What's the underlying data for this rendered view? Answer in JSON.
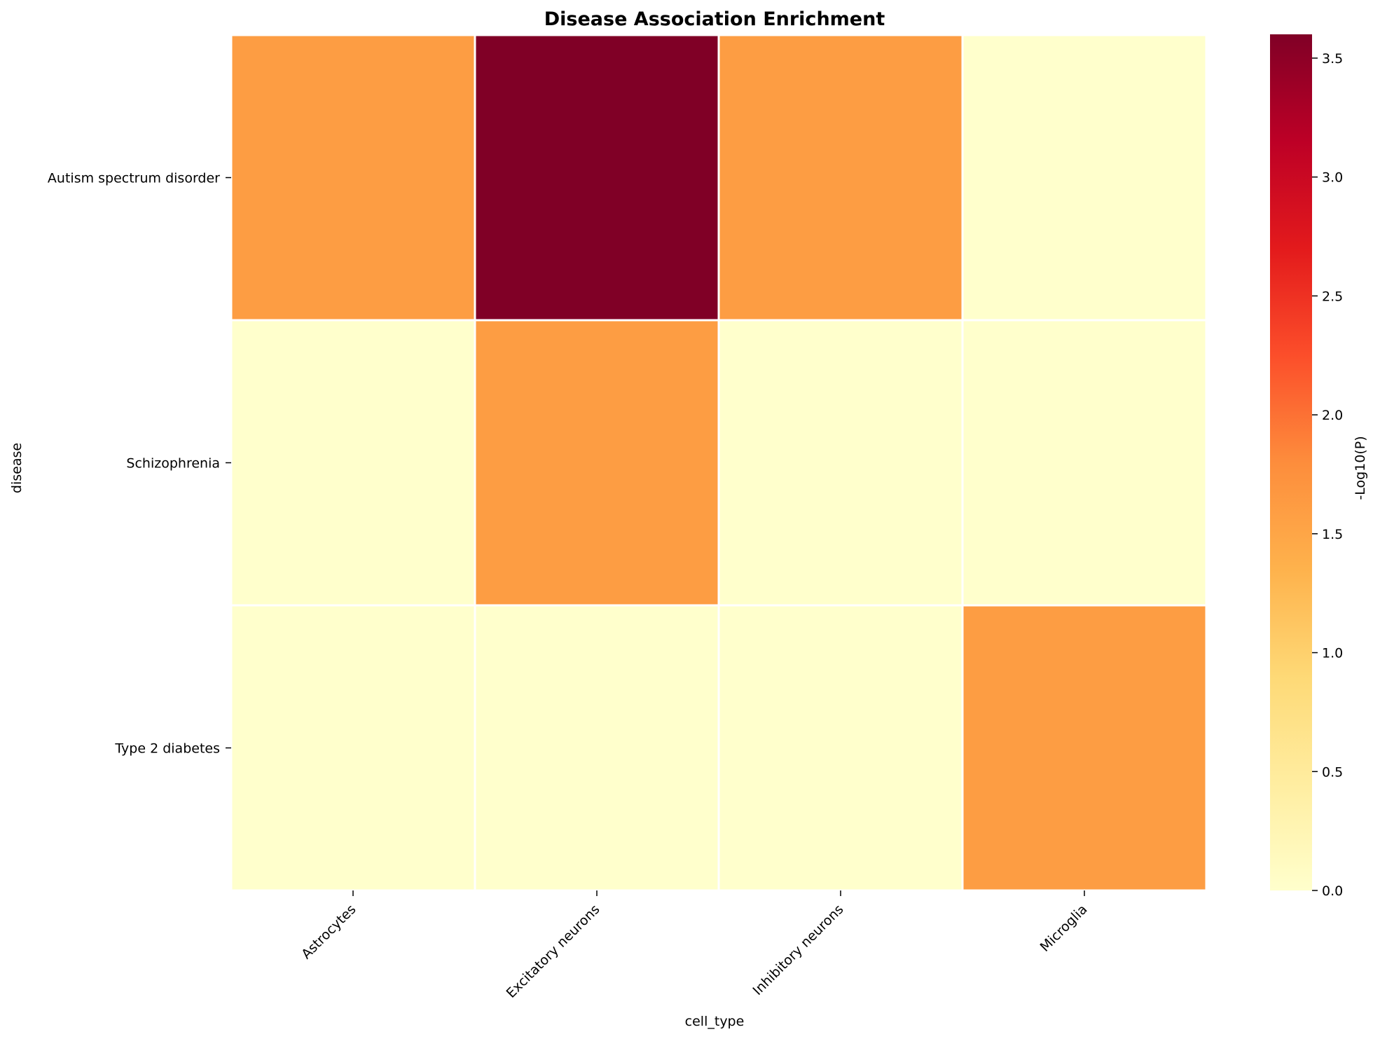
{
  "chart_data": {
    "type": "heatmap",
    "title": "Disease Association Enrichment",
    "xlabel": "cell_type",
    "ylabel": "disease",
    "x_categories": [
      "Astrocytes",
      "Excitatory neurons",
      "Inhibitory neurons",
      "Microglia"
    ],
    "y_categories": [
      "Autism spectrum disorder",
      "Schizophrenia",
      "Type 2 diabetes"
    ],
    "values": [
      [
        1.6,
        3.6,
        1.6,
        0.0
      ],
      [
        0.0,
        1.6,
        0.0,
        0.0
      ],
      [
        0.0,
        0.0,
        0.0,
        1.6
      ]
    ],
    "colorbar": {
      "label": "-Log10(P)",
      "range": [
        0,
        3.6
      ],
      "ticks": [
        "0.0",
        "0.5",
        "1.0",
        "1.5",
        "2.0",
        "2.5",
        "3.0",
        "3.5"
      ],
      "colormap": "YlOrRd",
      "stops": [
        "#ffffcc",
        "#ffeda0",
        "#fed976",
        "#feb24c",
        "#fd8d3c",
        "#fc4e2a",
        "#e31a1c",
        "#bd0026",
        "#800026"
      ]
    },
    "grid": false,
    "cell_border_color": "#ffffff",
    "legend": "colorbar right"
  }
}
